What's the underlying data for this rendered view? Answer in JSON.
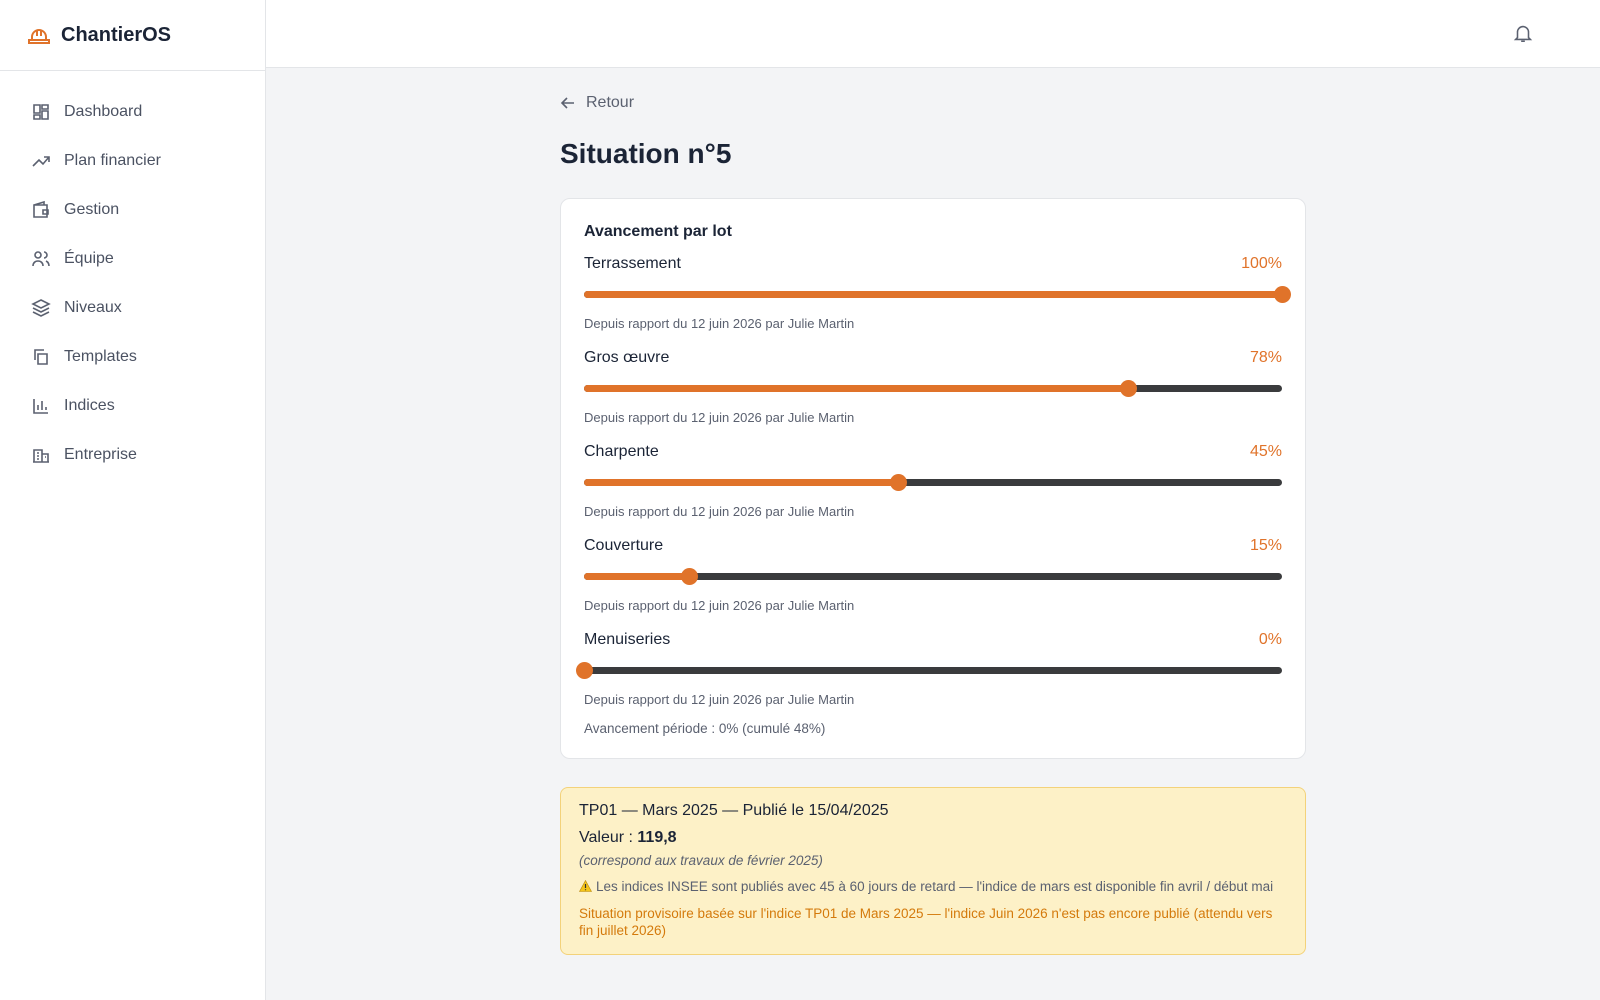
{
  "app": {
    "brand": "ChantierOS"
  },
  "nav": [
    "Dashboard",
    "Plan financier",
    "Gestion",
    "Équipe",
    "Niveaux",
    "Templates",
    "Indices",
    "Entreprise"
  ],
  "page": {
    "back": "Retour",
    "title": "Situation n°5"
  },
  "progress_card": {
    "title": "Avancement par lot",
    "lots": [
      {
        "name": "Terrassement",
        "value": 100,
        "value_label": "100%",
        "note": "Depuis rapport du 12 juin 2026 par Julie Martin"
      },
      {
        "name": "Gros œuvre",
        "value": 78,
        "value_label": "78%",
        "note": "Depuis rapport du 12 juin 2026 par Julie Martin"
      },
      {
        "name": "Charpente",
        "value": 45,
        "value_label": "45%",
        "note": "Depuis rapport du 12 juin 2026 par Julie Martin"
      },
      {
        "name": "Couverture",
        "value": 15,
        "value_label": "15%",
        "note": "Depuis rapport du 12 juin 2026 par Julie Martin"
      },
      {
        "name": "Menuiseries",
        "value": 0,
        "value_label": "0%",
        "note": "Depuis rapport du 12 juin 2026 par Julie Martin"
      }
    ],
    "summary": "Avancement période : 0% (cumulé 48%)"
  },
  "index_box": {
    "heading": "TP01 — Mars 2025 — Publié le 15/04/2025",
    "value_prefix": "Valeur :",
    "value": "119,8",
    "period_note": "(correspond aux travaux de février 2025)",
    "warning": "Les indices INSEE sont publiés avec 45 à 60 jours de retard — l'indice de mars est disponible fin avril / début mai",
    "provisional": "Situation provisoire basée sur l'indice TP01 de Mars 2025 — l'indice Juin 2026 n'est pas encore publié (attendu vers fin juillet 2026)"
  }
}
